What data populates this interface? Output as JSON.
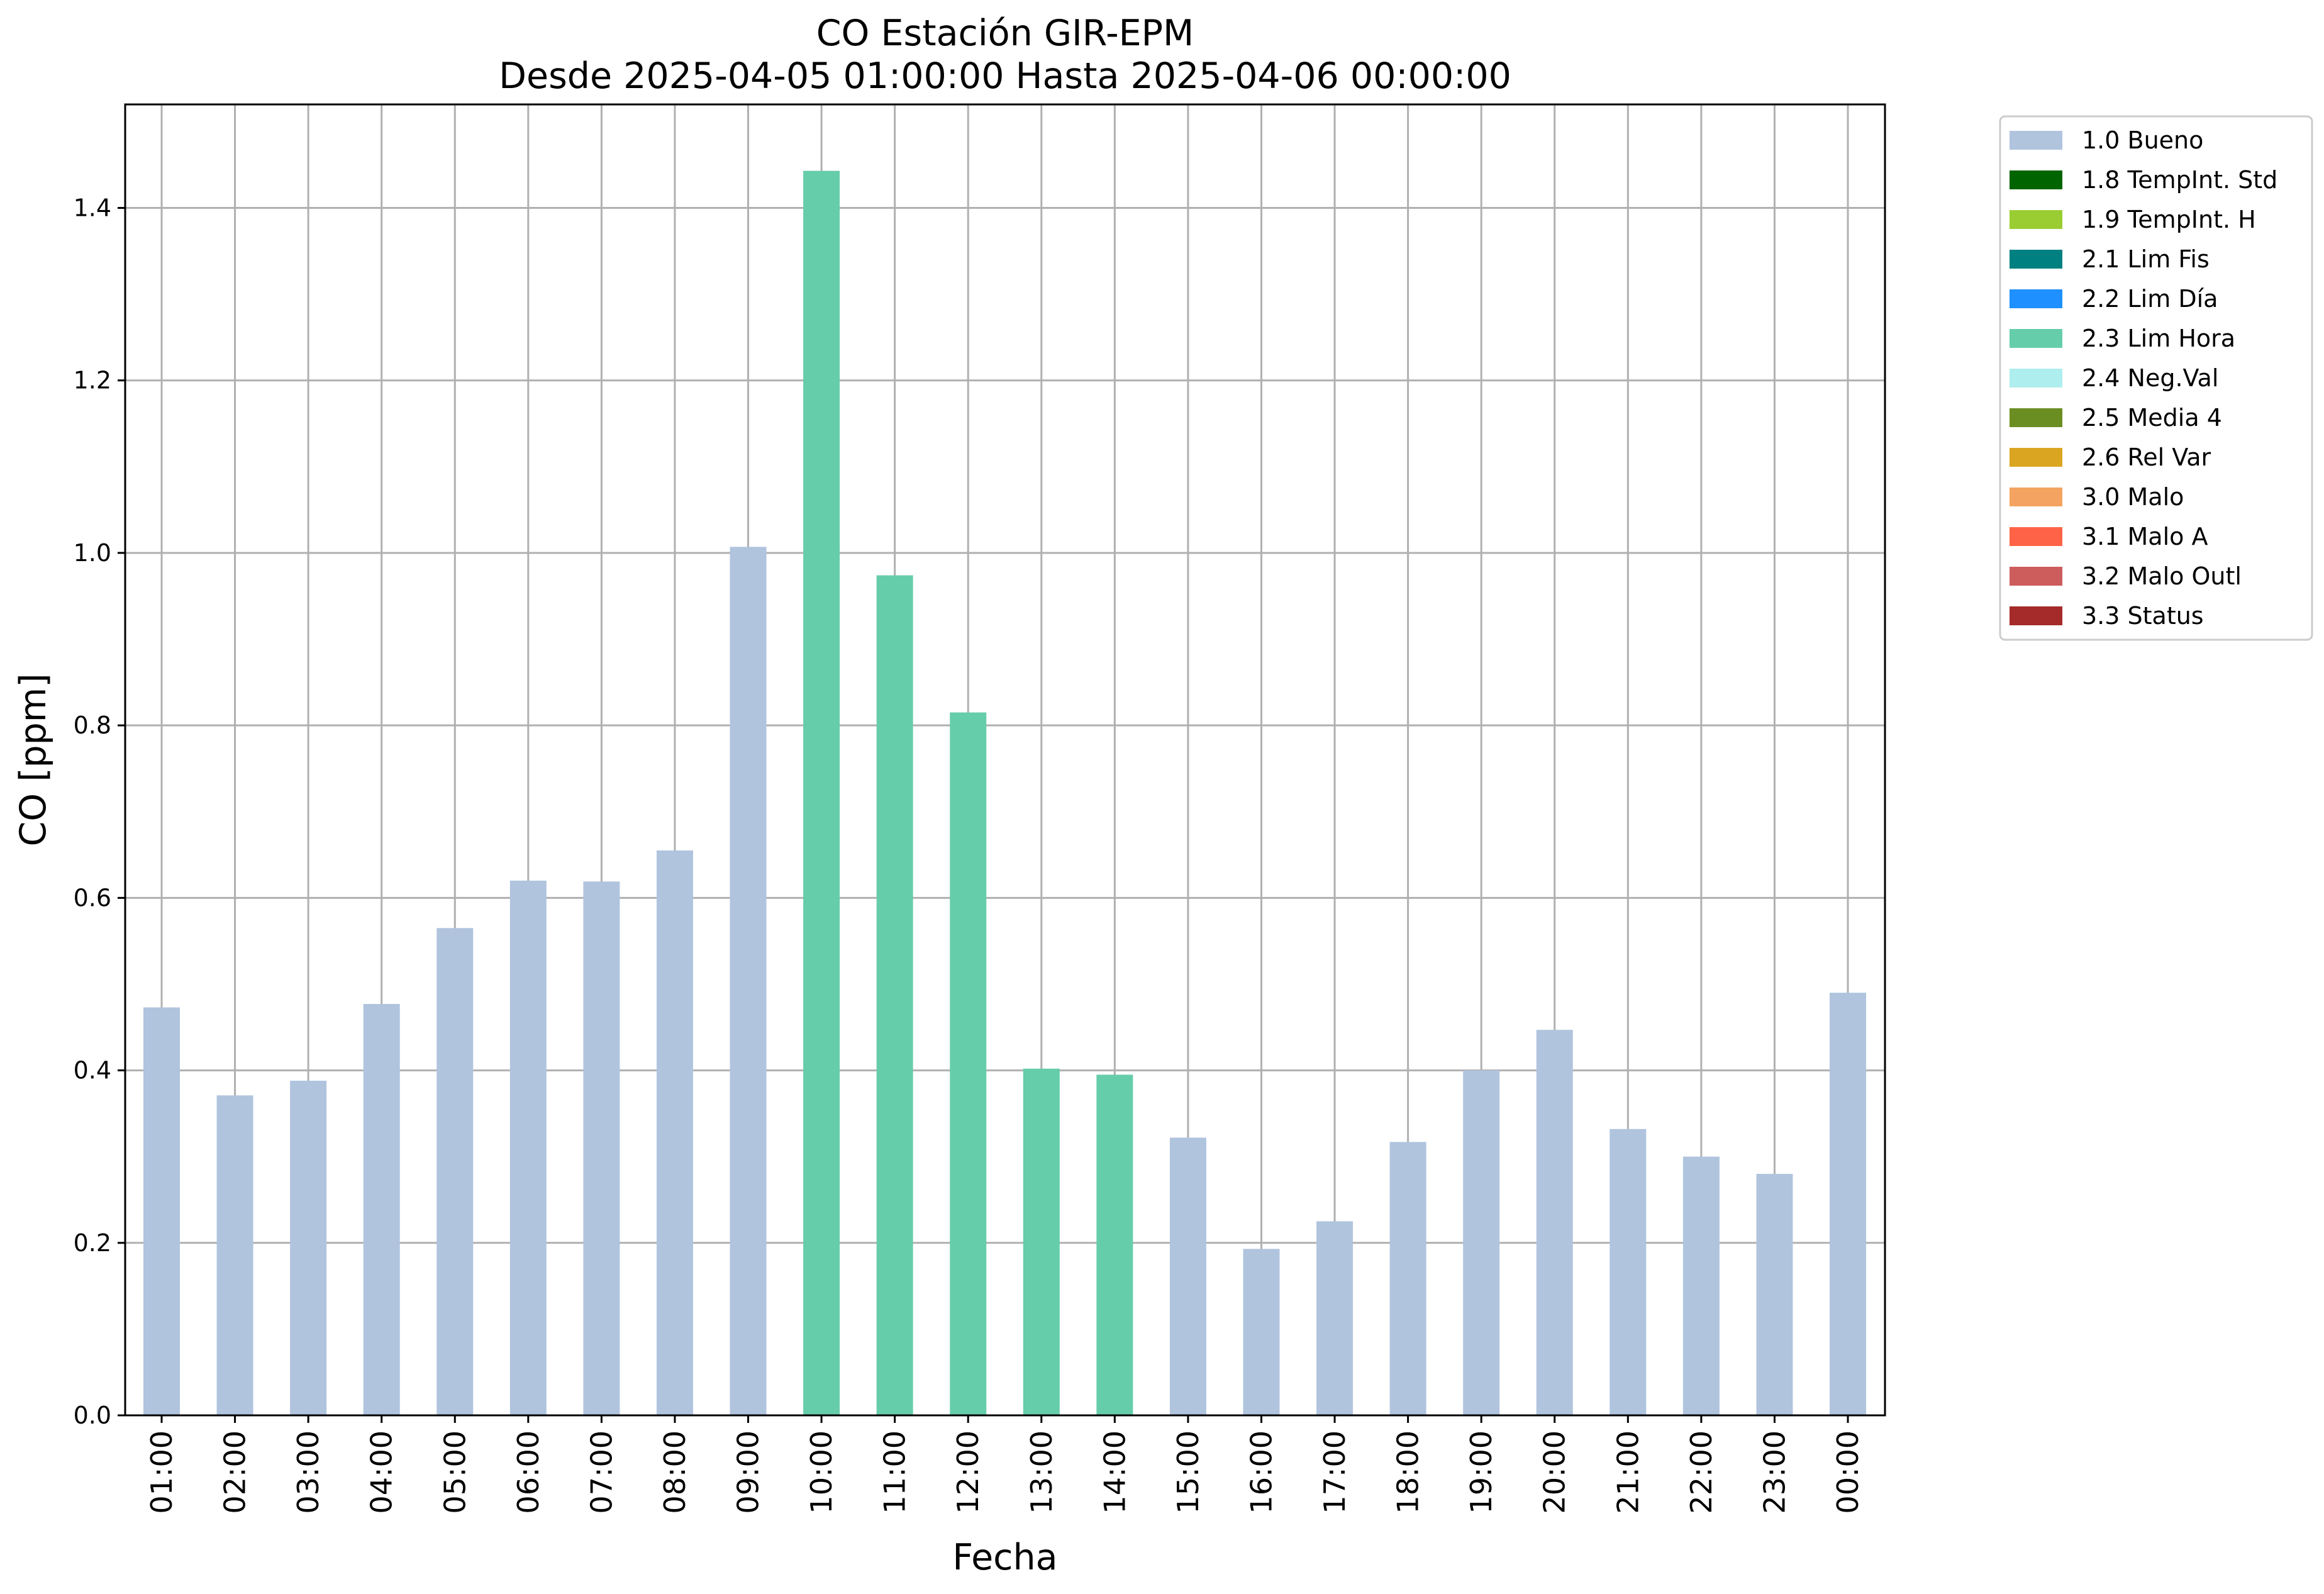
{
  "chart_data": {
    "type": "bar",
    "title": "CO Estación GIR-EPM",
    "subtitle": "Desde 2025-04-05 01:00:00 Hasta 2025-04-06 00:00:00",
    "xlabel": "Fecha",
    "ylabel": "CO [ppm]",
    "ylim": [
      0,
      1.52
    ],
    "yticks": [
      0.0,
      0.2,
      0.4,
      0.6,
      0.8,
      1.0,
      1.2,
      1.4
    ],
    "ytick_labels": [
      "0.0",
      "0.2",
      "0.4",
      "0.6",
      "0.8",
      "1.0",
      "1.2",
      "1.4"
    ],
    "grid": true,
    "legend_position": "outside-top-right",
    "categories": [
      "01:00",
      "02:00",
      "03:00",
      "04:00",
      "05:00",
      "06:00",
      "07:00",
      "08:00",
      "09:00",
      "10:00",
      "11:00",
      "12:00",
      "13:00",
      "14:00",
      "15:00",
      "16:00",
      "17:00",
      "18:00",
      "19:00",
      "20:00",
      "21:00",
      "22:00",
      "23:00",
      "00:00"
    ],
    "values": [
      0.473,
      0.371,
      0.388,
      0.477,
      0.565,
      0.62,
      0.619,
      0.655,
      1.007,
      1.443,
      0.974,
      0.815,
      0.402,
      0.395,
      0.322,
      0.193,
      0.225,
      0.317,
      0.4,
      0.447,
      0.332,
      0.3,
      0.28,
      0.49
    ],
    "flags": [
      "1.0 Bueno",
      "1.0 Bueno",
      "1.0 Bueno",
      "1.0 Bueno",
      "1.0 Bueno",
      "1.0 Bueno",
      "1.0 Bueno",
      "1.0 Bueno",
      "1.0 Bueno",
      "2.3 Lim Hora",
      "2.3 Lim Hora",
      "2.3 Lim Hora",
      "2.3 Lim Hora",
      "2.3 Lim Hora",
      "1.0 Bueno",
      "1.0 Bueno",
      "1.0 Bueno",
      "1.0 Bueno",
      "1.0 Bueno",
      "1.0 Bueno",
      "1.0 Bueno",
      "1.0 Bueno",
      "1.0 Bueno",
      "1.0 Bueno"
    ],
    "legend": [
      {
        "label": "1.0 Bueno",
        "color": "#b0c4de"
      },
      {
        "label": "1.8 TempInt. Std",
        "color": "#006400"
      },
      {
        "label": "1.9 TempInt. H",
        "color": "#9acd32"
      },
      {
        "label": "2.1 Lim Fis",
        "color": "#008080"
      },
      {
        "label": "2.2 Lim Día",
        "color": "#1e90ff"
      },
      {
        "label": "2.3 Lim Hora",
        "color": "#66cdaa"
      },
      {
        "label": "2.4 Neg.Val",
        "color": "#afeeee"
      },
      {
        "label": "2.5 Media 4",
        "color": "#6b8e23"
      },
      {
        "label": "2.6 Rel Var",
        "color": "#daa520"
      },
      {
        "label": "3.0 Malo",
        "color": "#f4a460"
      },
      {
        "label": "3.1 Malo A",
        "color": "#ff6347"
      },
      {
        "label": "3.2 Malo Outl",
        "color": "#cd5c5c"
      },
      {
        "label": "3.3 Status",
        "color": "#a52a2a"
      }
    ]
  }
}
